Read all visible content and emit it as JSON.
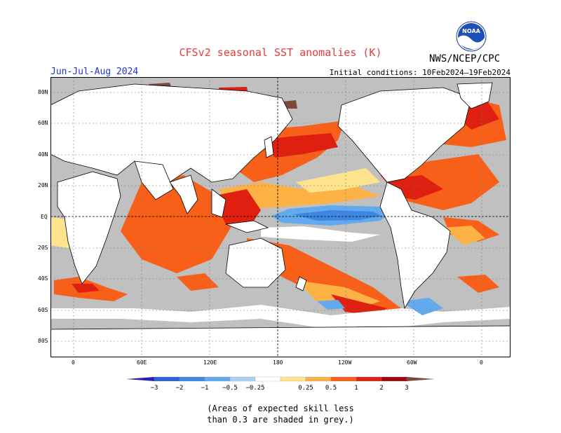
{
  "title": "CFSv2 seasonal SST anomalies (K)",
  "season": "Jun-Jul-Aug 2024",
  "initial_conditions": "Initial conditions: 10Feb2024–19Feb2024",
  "agency": "NWS/NCEP/CPC",
  "logo_text": "NOAA",
  "lat_labels": [
    "80N",
    "60N",
    "40N",
    "20N",
    "EQ",
    "20S",
    "40S",
    "60S",
    "80S"
  ],
  "lon_labels": [
    "0",
    "60E",
    "120E",
    "180",
    "120W",
    "60W",
    "0"
  ],
  "colorbar": {
    "ticks": [
      "−3",
      "−2",
      "−1",
      "−0.5",
      "−0.25",
      "0.25",
      "0.5",
      "1",
      "2",
      "3"
    ],
    "colors": [
      "#2a1fae",
      "#2f5fd6",
      "#3e86e2",
      "#62a9ee",
      "#a9d3f3",
      "#ffffff",
      "#fde38b",
      "#fcb244",
      "#f8601a",
      "#df1f10",
      "#9b0a0a",
      "#7a4a3a"
    ]
  },
  "note_line1": "(Areas of expected skill less",
  "note_line2": "than 0.3 are shaded in grey.)",
  "colors": {
    "skill_grey": "#c0c0c0",
    "land": "#ffffff",
    "title_red": "#e53b3b",
    "season_blue": "#2233cc"
  }
}
